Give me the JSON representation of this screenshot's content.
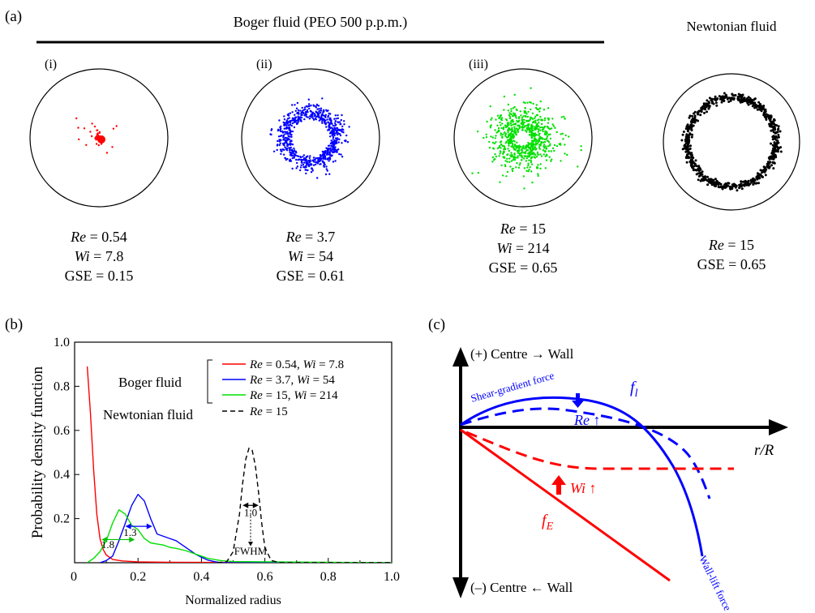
{
  "panel_a": {
    "label": "(a)",
    "group_title": "Boger fluid (PEO 500 p.p.m.)",
    "newtonian_title": "Newtonian fluid",
    "panels": [
      {
        "id": "(i)",
        "re_label": "Re",
        "re_value": " = 0.54",
        "wi_label": "Wi",
        "wi_value": " = 7.8",
        "gse": "GSE = 0.15",
        "color": "#ff0000",
        "pattern": "core"
      },
      {
        "id": "(ii)",
        "re_label": "Re",
        "re_value": " = 3.7",
        "wi_label": "Wi",
        "wi_value": " = 54",
        "gse": "GSE = 0.61",
        "color": "#0000ff",
        "pattern": "donut"
      },
      {
        "id": "(iii)",
        "re_label": "Re",
        "re_value": " = 15",
        "wi_label": "Wi",
        "wi_value": " = 214",
        "gse": "GSE = 0.65",
        "color": "#00e000",
        "pattern": "diffuse"
      },
      {
        "id": "",
        "re_label": "Re",
        "re_value": " = 15",
        "wi_label": "",
        "wi_value": "",
        "gse": "GSE = 0.65",
        "color": "#000000",
        "pattern": "ring"
      }
    ]
  },
  "panel_b": {
    "label": "(b)",
    "chart_data": {
      "type": "line",
      "xlabel": "Normalized radius",
      "ylabel": "Probability density function",
      "xlim": [
        0,
        1.0
      ],
      "ylim": [
        0,
        1.0
      ],
      "xticks": [
        "0",
        "0.2",
        "0.4",
        "0.6",
        "0.8",
        "1.0"
      ],
      "yticks": [
        "0.2",
        "0.4",
        "0.6",
        "0.8",
        "1.0"
      ],
      "legend": {
        "boger_label": "Boger fluid",
        "newtonian_label": "Newtonian fluid",
        "entries": [
          {
            "re": "Re",
            "re_val": " = 0.54, ",
            "wi": "Wi",
            "wi_val": " = 7.8"
          },
          {
            "re": "Re",
            "re_val": " = 3.7, ",
            "wi": "Wi",
            "wi_val": " = 54"
          },
          {
            "re": "Re",
            "re_val": " = 15, ",
            "wi": "Wi",
            "wi_val": " = 214"
          },
          {
            "re": "Re",
            "re_val": " = 15",
            "wi": "",
            "wi_val": ""
          }
        ]
      },
      "series": [
        {
          "color": "#ff0000",
          "dash": false,
          "x": [
            0.04,
            0.05,
            0.06,
            0.07,
            0.08,
            0.09,
            0.1,
            0.12,
            0.15,
            0.2,
            0.3,
            1.0
          ],
          "y": [
            0.89,
            0.68,
            0.42,
            0.22,
            0.11,
            0.06,
            0.035,
            0.015,
            0.008,
            0.004,
            0.002,
            0.0
          ]
        },
        {
          "color": "#0000ff",
          "dash": false,
          "x": [
            0.08,
            0.1,
            0.12,
            0.14,
            0.16,
            0.18,
            0.2,
            0.22,
            0.24,
            0.26,
            0.28,
            0.3,
            0.32,
            0.34,
            0.36,
            0.38,
            0.4,
            0.42,
            0.44,
            0.46,
            1.0
          ],
          "y": [
            0.0,
            0.01,
            0.03,
            0.1,
            0.18,
            0.26,
            0.31,
            0.28,
            0.2,
            0.13,
            0.12,
            0.11,
            0.1,
            0.08,
            0.06,
            0.04,
            0.025,
            0.012,
            0.005,
            0.0,
            0.0
          ]
        },
        {
          "color": "#00e000",
          "dash": false,
          "x": [
            0.04,
            0.06,
            0.08,
            0.1,
            0.12,
            0.14,
            0.16,
            0.18,
            0.2,
            0.22,
            0.24,
            0.26,
            0.28,
            0.3,
            0.32,
            0.35,
            0.38,
            0.4,
            0.42,
            0.44,
            0.46,
            0.5,
            1.0
          ],
          "y": [
            0.0,
            0.02,
            0.05,
            0.1,
            0.18,
            0.24,
            0.22,
            0.17,
            0.15,
            0.11,
            0.09,
            0.085,
            0.08,
            0.07,
            0.065,
            0.055,
            0.04,
            0.03,
            0.02,
            0.015,
            0.01,
            0.005,
            0.0
          ]
        },
        {
          "color": "#000000",
          "dash": true,
          "x": [
            0.45,
            0.48,
            0.5,
            0.52,
            0.53,
            0.54,
            0.55,
            0.56,
            0.57,
            0.58,
            0.59,
            0.6,
            0.62,
            0.65,
            1.0
          ],
          "y": [
            0.0,
            0.005,
            0.05,
            0.22,
            0.36,
            0.47,
            0.52,
            0.51,
            0.44,
            0.32,
            0.18,
            0.07,
            0.01,
            0.0,
            0.0
          ]
        }
      ],
      "annotations": [
        {
          "text": "1.3",
          "x": 0.175,
          "y": 0.14
        },
        {
          "text": "1.8",
          "x": 0.105,
          "y": 0.085
        },
        {
          "text": "1.0",
          "x": 0.555,
          "y": 0.23
        },
        {
          "text": "FWHM",
          "x": 0.555,
          "y": 0.055
        }
      ]
    }
  },
  "panel_c": {
    "label": "(c)",
    "top_label": "(+) Centre → Wall",
    "bottom_label": "(–) Centre ← Wall",
    "axis_label": "r/R",
    "shear_label": "Shear-gradient force",
    "wall_label": "Wall-lift force",
    "fl_label": "f",
    "fl_sub": "l",
    "fe_label": "f",
    "fe_sub": "E",
    "re_label": "Re",
    "re_arrow": " ↑",
    "wi_label": "Wi",
    "wi_arrow": " ↑",
    "colors": {
      "lift": "#0000ff",
      "elastic": "#ff0000"
    }
  }
}
